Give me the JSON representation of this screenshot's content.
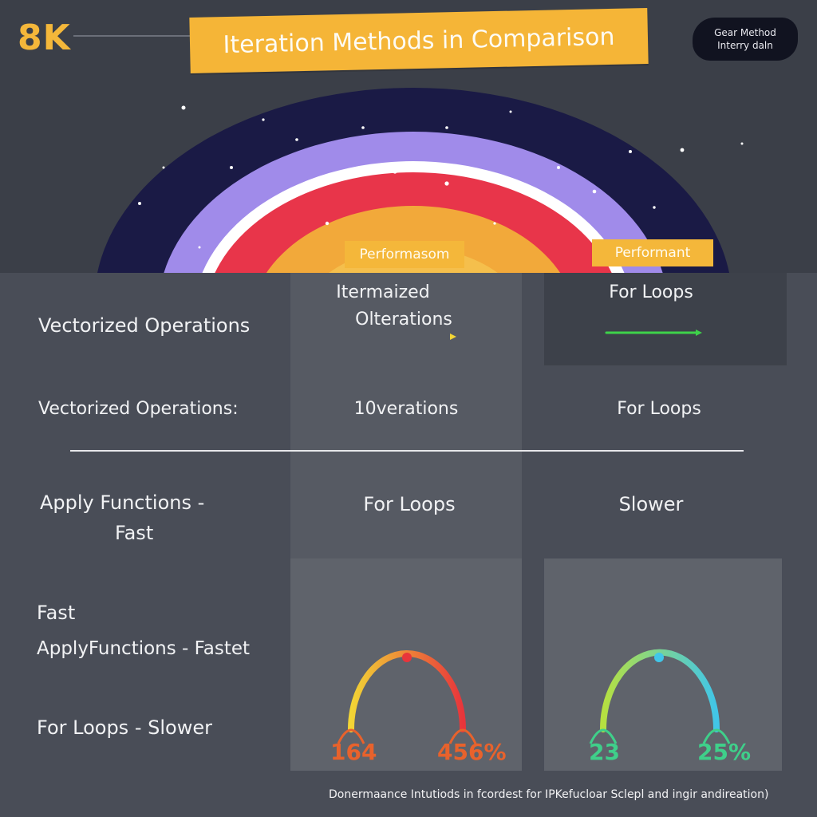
{
  "header": {
    "logo": "8K",
    "title": "Iteration Methods in Comparison",
    "badge_line1": "Gear Method",
    "badge_line2": "Interry daln"
  },
  "pills": {
    "left": "Performasom",
    "right": "Performant"
  },
  "table": {
    "row1": {
      "left": "Vectorized Operations",
      "mid_line1": "Itermaized",
      "mid_line2": "Olterations",
      "right": "For Loops"
    },
    "row2": {
      "left": "Vectorized Operations:",
      "mid": "10verations",
      "right": "For Loops"
    },
    "row3": {
      "left_line1": "Apply Functions -",
      "left_line2": "Fast",
      "mid": "For Loops",
      "right": "Slower"
    },
    "row4": {
      "left_line1": "Fast",
      "left_line2": "ApplyFunctions - Fastet",
      "left_line3": "For Loops - Slower"
    }
  },
  "gauges": [
    {
      "left_value": "164",
      "right_value": "456%",
      "colors": [
        "#f2d535",
        "#e8353b"
      ],
      "value_color": "#e8622c"
    },
    {
      "left_value": "23",
      "right_value": "25%",
      "colors": [
        "#b6e040",
        "#41c6e8"
      ],
      "value_color": "#3fcf8a"
    }
  ],
  "accent_lines": {
    "mid_gradient": [
      "#e8353b",
      "#f2d535"
    ],
    "right_color": "#3ed24a"
  },
  "footer": {
    "note": "Donermaance Intutiods in fcordest for IPKefucloar Sclepl and ingir andireation)"
  },
  "colors": {
    "background": "#3b3f48",
    "accent": "#f4b73a",
    "rainbow": [
      "#17173f",
      "#9c84e8",
      "#ffffff",
      "#e8354a",
      "#f2a93a"
    ]
  }
}
